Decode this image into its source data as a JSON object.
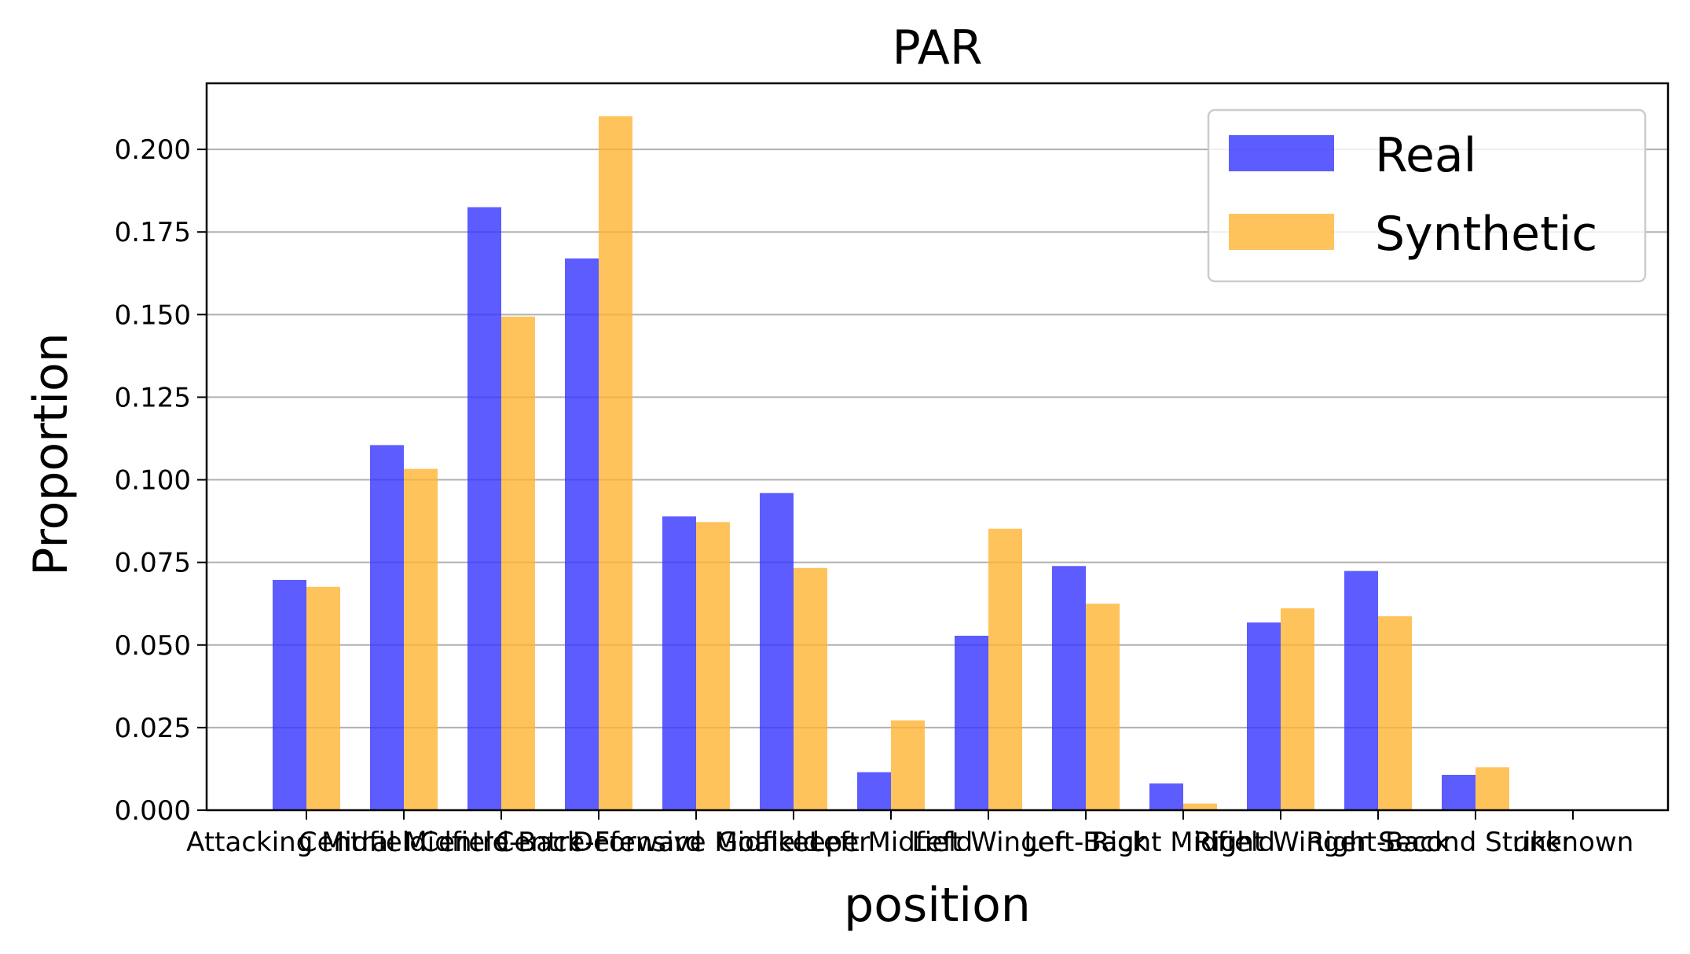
{
  "chart_data": {
    "type": "bar",
    "title": "PAR",
    "xlabel": "position",
    "ylabel": "Proportion",
    "categories": [
      "Attacking Midfield",
      "Central Midfield",
      "Centre-Back",
      "Centre-Forward",
      "Defensive Midfield",
      "Goalkeeper",
      "Left Midfield",
      "Left Winger",
      "Left-Back",
      "Right Midfield",
      "Right Winger",
      "Right-Back",
      "Second Striker",
      "unknown"
    ],
    "series": [
      {
        "name": "Real",
        "color": "#3333ff",
        "values": [
          0.0697,
          0.1105,
          0.1825,
          0.167,
          0.0889,
          0.096,
          0.0115,
          0.0528,
          0.0739,
          0.0081,
          0.0568,
          0.0724,
          0.0107,
          0.0
        ]
      },
      {
        "name": "Synthetic",
        "color": "#ffb433",
        "values": [
          0.0676,
          0.1033,
          0.1494,
          0.21,
          0.0872,
          0.0733,
          0.0272,
          0.0852,
          0.0625,
          0.002,
          0.0611,
          0.0587,
          0.013,
          0.0
        ]
      }
    ],
    "ylim": [
      0,
      0.22
    ],
    "yticks": [
      "0.000",
      "0.025",
      "0.050",
      "0.075",
      "0.100",
      "0.125",
      "0.150",
      "0.175",
      "0.200"
    ],
    "ytick_values": [
      0,
      0.025,
      0.05,
      0.075,
      0.1,
      0.125,
      0.15,
      0.175,
      0.2
    ],
    "grid": "y",
    "legend_position": "top-right"
  }
}
